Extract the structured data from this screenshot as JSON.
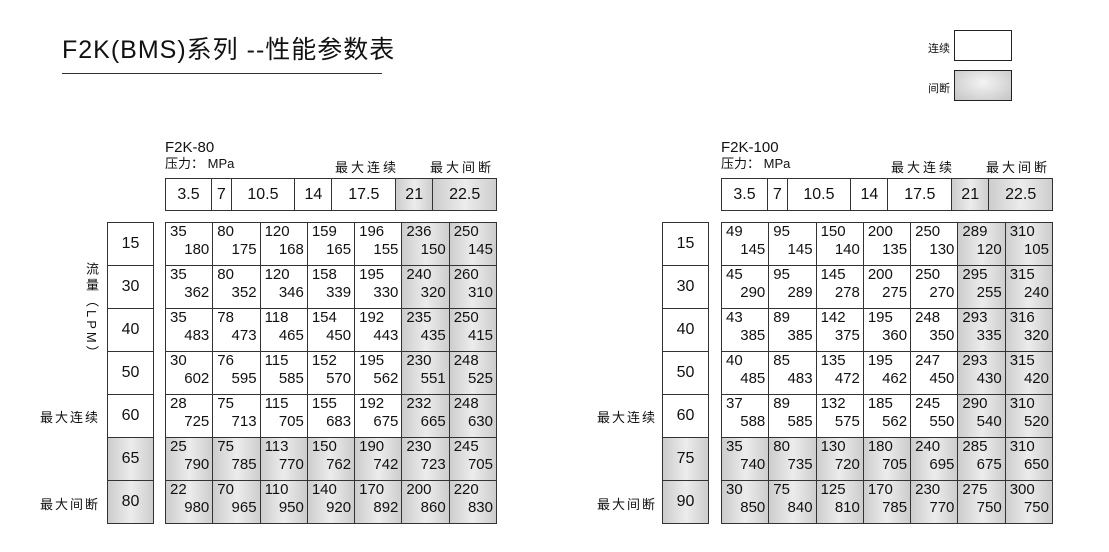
{
  "title": "F2K(BMS)系列 --性能参数表",
  "legend": {
    "continuous": "连续",
    "intermittent": "间断"
  },
  "colors": {
    "shade": "#c8c8c8",
    "border": "#333333"
  },
  "tables": [
    {
      "model": "F2K-80",
      "unit": "压力： MPa",
      "max_continuous": "最大连续",
      "max_intermittent": "最大间断",
      "flow_axis": "流量（LPM）",
      "pressures": [
        "3.5",
        "7",
        "10.5",
        "14",
        "17.5",
        "21",
        "22.5"
      ],
      "flows": [
        "15",
        "30",
        "40",
        "50",
        "60",
        "65",
        "80"
      ],
      "row_labels": {
        "max_continuous": "最大连续",
        "max_intermittent": "最大间断"
      },
      "rows": [
        [
          [
            "35",
            "180"
          ],
          [
            "80",
            "175"
          ],
          [
            "120",
            "168"
          ],
          [
            "159",
            "165"
          ],
          [
            "196",
            "155"
          ],
          [
            "236",
            "150"
          ],
          [
            "250",
            "145"
          ]
        ],
        [
          [
            "35",
            "362"
          ],
          [
            "80",
            "352"
          ],
          [
            "120",
            "346"
          ],
          [
            "158",
            "339"
          ],
          [
            "195",
            "330"
          ],
          [
            "240",
            "320"
          ],
          [
            "260",
            "310"
          ]
        ],
        [
          [
            "35",
            "483"
          ],
          [
            "78",
            "473"
          ],
          [
            "118",
            "465"
          ],
          [
            "154",
            "450"
          ],
          [
            "192",
            "443"
          ],
          [
            "235",
            "435"
          ],
          [
            "250",
            "415"
          ]
        ],
        [
          [
            "30",
            "602"
          ],
          [
            "76",
            "595"
          ],
          [
            "115",
            "585"
          ],
          [
            "152",
            "570"
          ],
          [
            "195",
            "562"
          ],
          [
            "230",
            "551"
          ],
          [
            "248",
            "525"
          ]
        ],
        [
          [
            "28",
            "725"
          ],
          [
            "75",
            "713"
          ],
          [
            "115",
            "705"
          ],
          [
            "155",
            "683"
          ],
          [
            "192",
            "675"
          ],
          [
            "232",
            "665"
          ],
          [
            "248",
            "630"
          ]
        ],
        [
          [
            "25",
            "790"
          ],
          [
            "75",
            "785"
          ],
          [
            "113",
            "770"
          ],
          [
            "150",
            "762"
          ],
          [
            "190",
            "742"
          ],
          [
            "230",
            "723"
          ],
          [
            "245",
            "705"
          ]
        ],
        [
          [
            "22",
            "980"
          ],
          [
            "70",
            "965"
          ],
          [
            "110",
            "950"
          ],
          [
            "140",
            "920"
          ],
          [
            "170",
            "892"
          ],
          [
            "200",
            "860"
          ],
          [
            "220",
            "830"
          ]
        ]
      ]
    },
    {
      "model": "F2K-100",
      "unit": "压力： MPa",
      "max_continuous": "最大连续",
      "max_intermittent": "最大间断",
      "flow_axis": "流量（LPM）",
      "pressures": [
        "3.5",
        "7",
        "10.5",
        "14",
        "17.5",
        "21",
        "22.5"
      ],
      "flows": [
        "15",
        "30",
        "40",
        "50",
        "60",
        "75",
        "90"
      ],
      "row_labels": {
        "max_continuous": "最大连续",
        "max_intermittent": "最大间断"
      },
      "rows": [
        [
          [
            "49",
            "145"
          ],
          [
            "95",
            "145"
          ],
          [
            "150",
            "140"
          ],
          [
            "200",
            "135"
          ],
          [
            "250",
            "130"
          ],
          [
            "289",
            "120"
          ],
          [
            "310",
            "105"
          ]
        ],
        [
          [
            "45",
            "290"
          ],
          [
            "95",
            "289"
          ],
          [
            "145",
            "278"
          ],
          [
            "200",
            "275"
          ],
          [
            "250",
            "270"
          ],
          [
            "295",
            "255"
          ],
          [
            "315",
            "240"
          ]
        ],
        [
          [
            "43",
            "385"
          ],
          [
            "89",
            "385"
          ],
          [
            "142",
            "375"
          ],
          [
            "195",
            "360"
          ],
          [
            "248",
            "350"
          ],
          [
            "293",
            "335"
          ],
          [
            "316",
            "320"
          ]
        ],
        [
          [
            "40",
            "485"
          ],
          [
            "85",
            "483"
          ],
          [
            "135",
            "472"
          ],
          [
            "195",
            "462"
          ],
          [
            "247",
            "450"
          ],
          [
            "293",
            "430"
          ],
          [
            "315",
            "420"
          ]
        ],
        [
          [
            "37",
            "588"
          ],
          [
            "89",
            "585"
          ],
          [
            "132",
            "575"
          ],
          [
            "185",
            "562"
          ],
          [
            "245",
            "550"
          ],
          [
            "290",
            "540"
          ],
          [
            "310",
            "520"
          ]
        ],
        [
          [
            "35",
            "740"
          ],
          [
            "80",
            "735"
          ],
          [
            "130",
            "720"
          ],
          [
            "180",
            "705"
          ],
          [
            "240",
            "695"
          ],
          [
            "285",
            "675"
          ],
          [
            "310",
            "650"
          ]
        ],
        [
          [
            "30",
            "850"
          ],
          [
            "75",
            "840"
          ],
          [
            "125",
            "810"
          ],
          [
            "170",
            "785"
          ],
          [
            "230",
            "770"
          ],
          [
            "275",
            "750"
          ],
          [
            "300",
            "750"
          ]
        ]
      ]
    }
  ]
}
